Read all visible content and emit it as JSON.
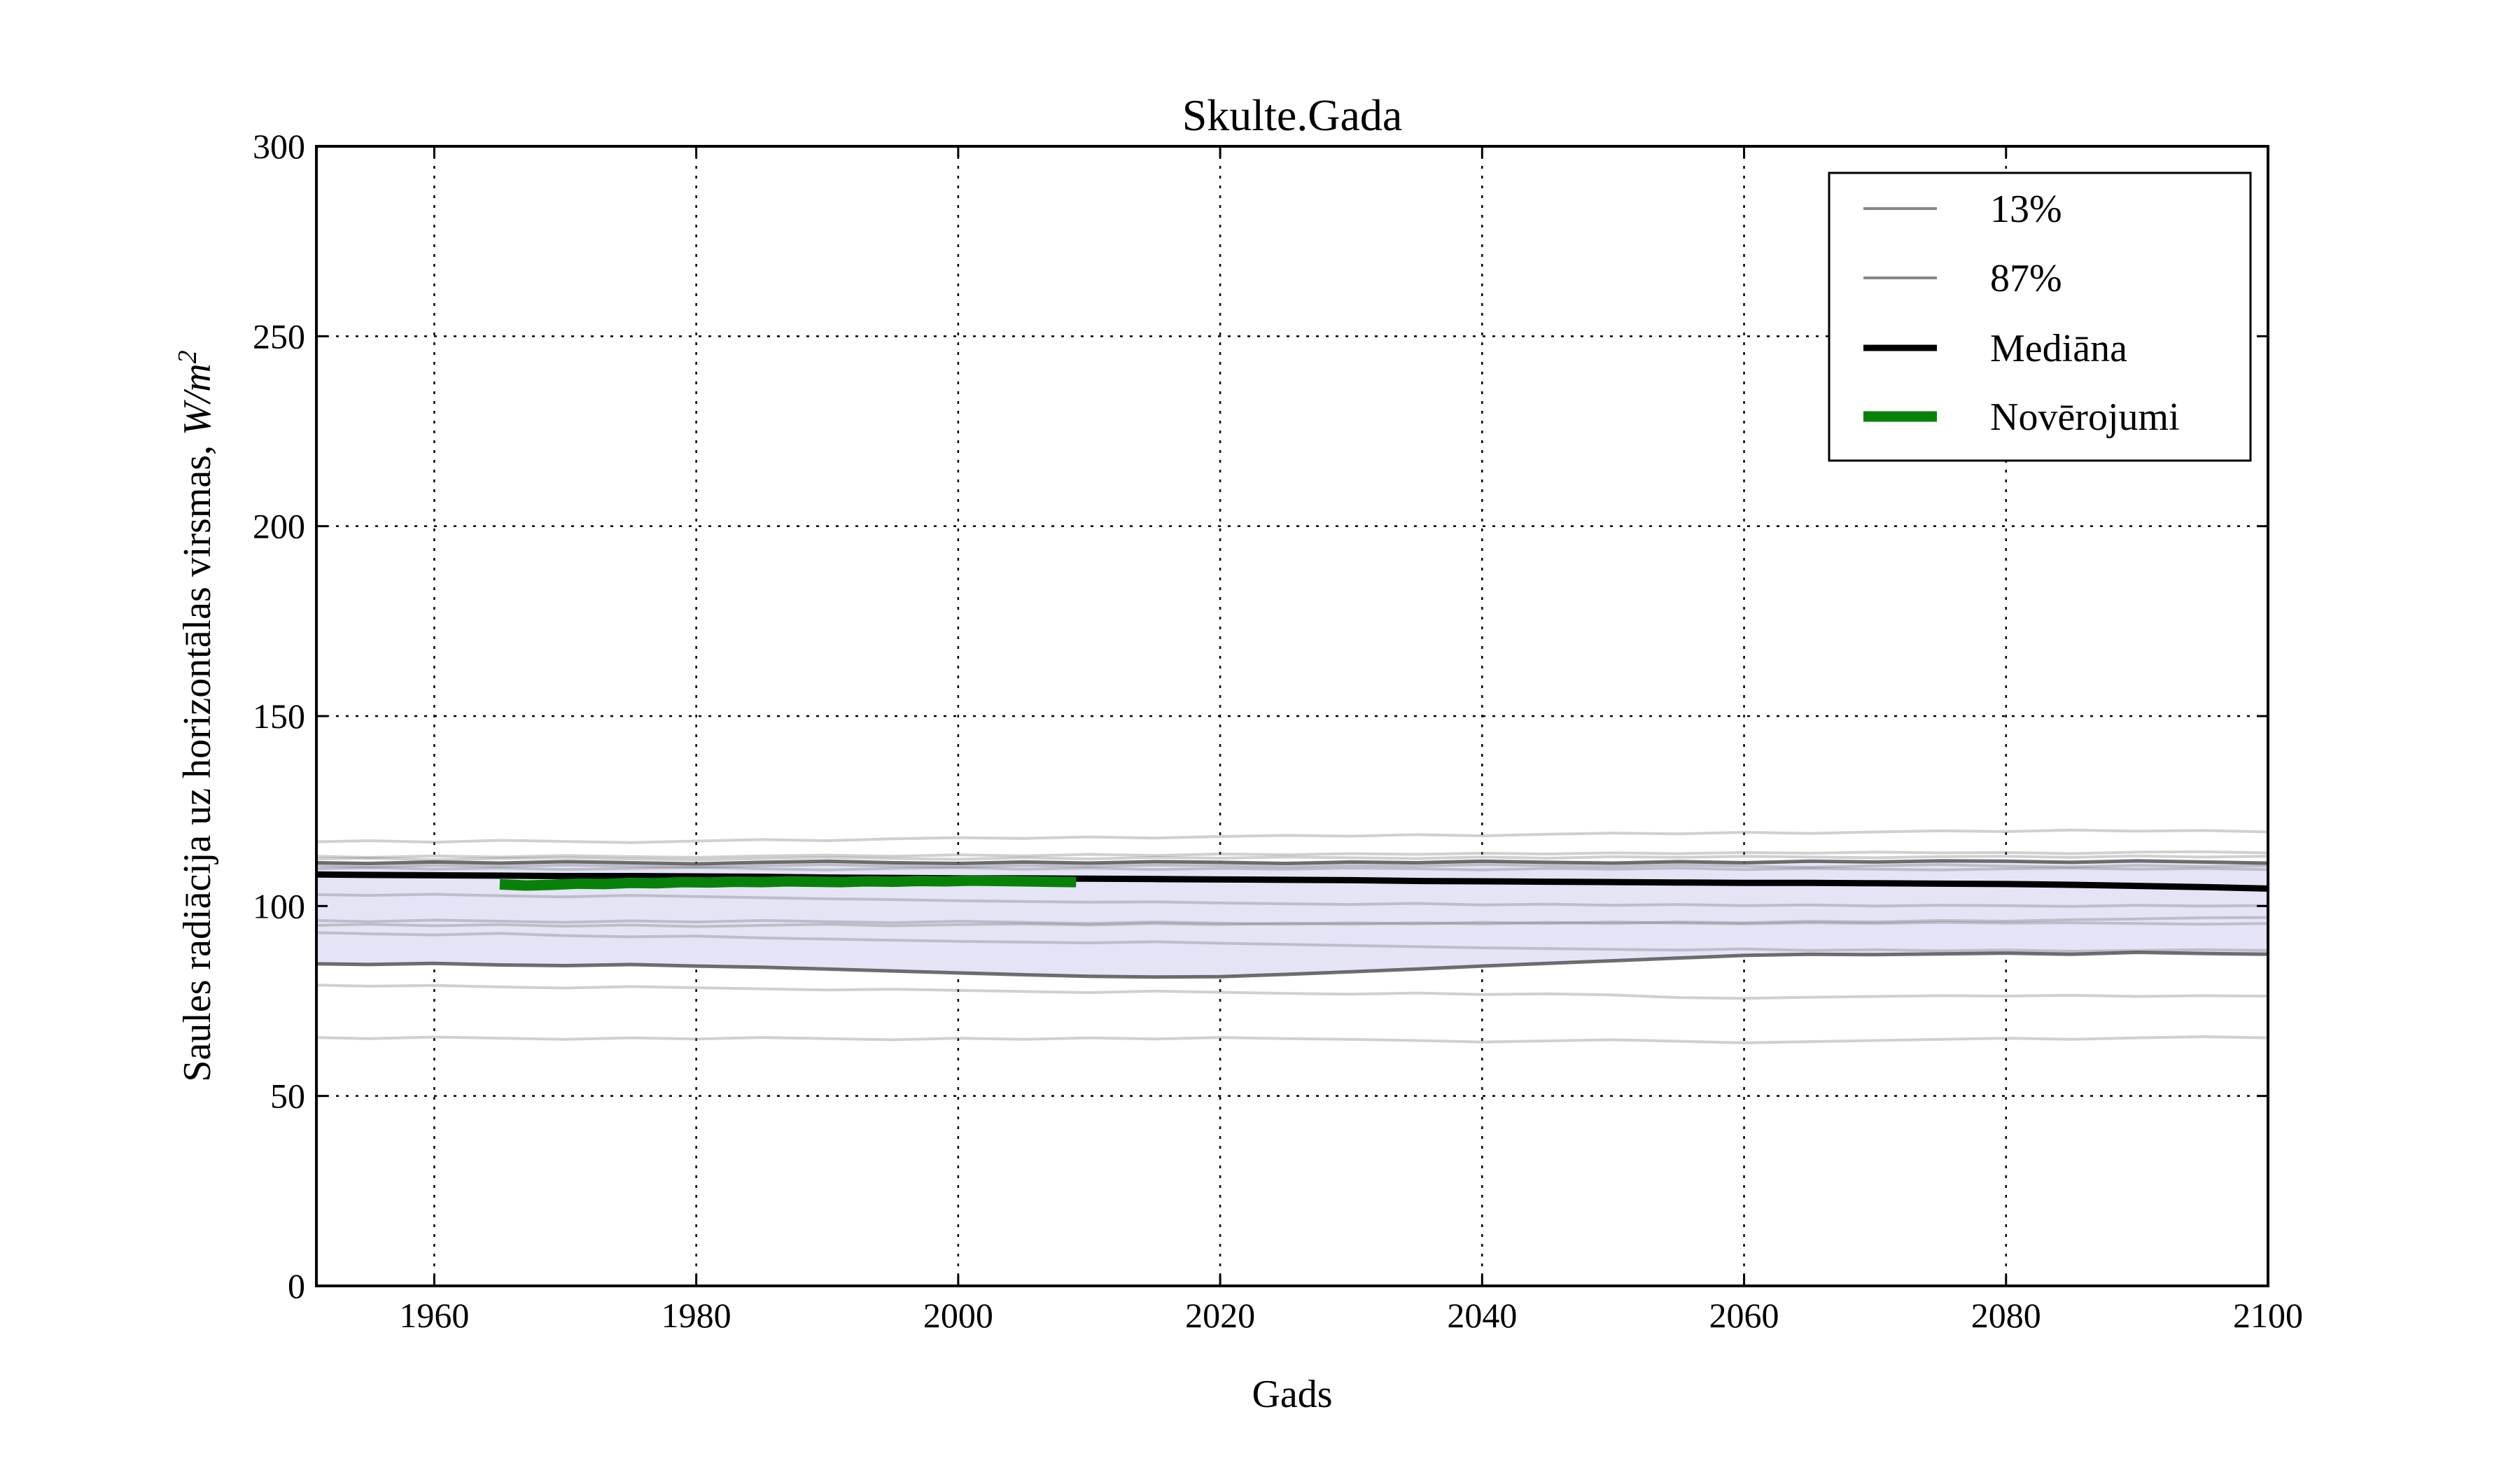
{
  "chart_data": {
    "type": "line",
    "title": "Skulte.Gada",
    "xlabel": "Gads",
    "ylabel": "Saules radiācija uz horizontālas virsmas, W/m²",
    "ylabel_plain": "Saules radiācija uz horizontālas virsmas,",
    "ylabel_math": "W/m",
    "ylabel_sup": "2",
    "xlim": [
      1951,
      2100
    ],
    "ylim": [
      0,
      300
    ],
    "xticks": [
      1960,
      1980,
      2000,
      2020,
      2040,
      2060,
      2080,
      2100
    ],
    "yticks": [
      0,
      50,
      100,
      150,
      200,
      250,
      300
    ],
    "grid": true,
    "grid_style": "dotted",
    "colors": {
      "median": "#000000",
      "observations": "#088108",
      "percentile": "rgba(70,70,70,0.78)",
      "ensemble": "rgba(110,110,110,0.32)",
      "band_fill": "#e4e4f6",
      "legend_gray": "#888888"
    },
    "legend": {
      "position": "upper right",
      "entries": [
        {
          "label": "13%",
          "color": "#888888",
          "width": 4
        },
        {
          "label": "87%",
          "color": "#888888",
          "width": 4
        },
        {
          "label": "Mediāna",
          "color": "#000000",
          "width": 9
        },
        {
          "label": "Novērojumi",
          "color": "#088108",
          "width": 15
        }
      ]
    },
    "x": [
      1951,
      1955,
      1960,
      1965,
      1970,
      1975,
      1980,
      1985,
      1990,
      1995,
      2000,
      2005,
      2010,
      2015,
      2020,
      2025,
      2030,
      2035,
      2040,
      2045,
      2050,
      2055,
      2060,
      2065,
      2070,
      2075,
      2080,
      2085,
      2090,
      2095,
      2100
    ],
    "band": {
      "between": [
        "13%",
        "87%"
      ]
    },
    "series": [
      {
        "name": "ensemble-1",
        "role": "ensemble",
        "values": [
          116.9,
          117.2,
          116.8,
          117.3,
          117.0,
          116.7,
          117.1,
          117.5,
          117.2,
          117.7,
          118.0,
          117.8,
          118.2,
          117.9,
          118.3,
          118.6,
          118.4,
          118.8,
          118.5,
          118.9,
          119.2,
          119.0,
          119.4,
          119.1,
          119.5,
          119.8,
          119.6,
          120.0,
          119.7,
          119.9,
          119.5
        ]
      },
      {
        "name": "ensemble-2",
        "role": "ensemble",
        "values": [
          113.1,
          112.8,
          113.2,
          112.9,
          113.3,
          113.0,
          112.8,
          113.2,
          113.4,
          113.1,
          113.5,
          113.2,
          113.6,
          113.3,
          113.7,
          113.5,
          113.8,
          113.6,
          113.9,
          113.7,
          114.0,
          113.8,
          114.1,
          113.9,
          114.2,
          114.0,
          114.1,
          113.8,
          114.2,
          114.3,
          114.0
        ]
      },
      {
        "name": "ensemble-3",
        "role": "ensemble",
        "values": [
          112.4,
          112.6,
          112.2,
          112.5,
          112.7,
          112.4,
          112.1,
          112.5,
          112.8,
          112.5,
          112.3,
          112.7,
          112.4,
          112.8,
          112.6,
          112.9,
          112.7,
          112.5,
          112.9,
          112.6,
          113.0,
          112.8,
          113.1,
          112.9,
          112.7,
          113.0,
          113.1,
          112.8,
          113.2,
          112.9,
          113.1
        ]
      },
      {
        "name": "ensemble-4",
        "role": "ensemble",
        "values": [
          110.6,
          110.3,
          110.7,
          110.4,
          110.8,
          110.5,
          110.2,
          110.6,
          110.9,
          110.5,
          110.3,
          110.7,
          110.4,
          110.8,
          110.6,
          110.3,
          110.7,
          110.5,
          110.9,
          110.6,
          110.4,
          110.8,
          110.5,
          110.2,
          110.6,
          110.9,
          110.5,
          110.3,
          110.7,
          110.4,
          110.6
        ]
      },
      {
        "name": "ensemble-5",
        "role": "ensemble",
        "values": [
          109.8,
          110.1,
          109.7,
          110.0,
          109.6,
          109.9,
          110.2,
          109.8,
          109.5,
          109.9,
          110.1,
          109.7,
          110.0,
          109.6,
          109.9,
          109.7,
          110.0,
          109.8,
          109.5,
          109.9,
          109.7,
          110.0,
          109.6,
          109.9,
          109.7,
          109.5,
          109.8,
          110.0,
          109.7,
          109.9,
          109.6
        ]
      },
      {
        "name": "ensemble-6",
        "role": "ensemble",
        "values": [
          103.0,
          102.8,
          103.1,
          102.7,
          102.4,
          102.8,
          102.5,
          102.2,
          101.9,
          101.7,
          101.4,
          101.2,
          101.0,
          101.1,
          100.8,
          100.6,
          100.4,
          100.7,
          100.3,
          100.5,
          100.2,
          100.4,
          100.1,
          100.3,
          100.0,
          100.2,
          100.1,
          99.9,
          100.2,
          100.0,
          100.1
        ]
      },
      {
        "name": "ensemble-7",
        "role": "ensemble",
        "values": [
          96.2,
          95.9,
          96.3,
          96.0,
          95.7,
          96.1,
          95.8,
          96.2,
          95.9,
          95.6,
          96.0,
          95.7,
          95.4,
          95.8,
          95.5,
          95.2,
          95.6,
          95.3,
          95.7,
          95.4,
          95.8,
          95.5,
          95.3,
          95.6,
          95.4,
          95.7,
          95.5,
          95.6,
          95.4,
          95.2,
          95.4
        ]
      },
      {
        "name": "ensemble-8",
        "role": "ensemble",
        "values": [
          94.9,
          95.2,
          94.8,
          95.1,
          94.7,
          95.0,
          94.6,
          94.9,
          95.2,
          94.8,
          95.1,
          95.3,
          95.0,
          95.4,
          95.1,
          95.5,
          95.2,
          95.6,
          95.3,
          95.7,
          95.4,
          95.8,
          95.6,
          96.0,
          95.8,
          96.2,
          96.0,
          96.4,
          96.6,
          96.9,
          97.0
        ]
      },
      {
        "name": "ensemble-9",
        "role": "ensemble",
        "values": [
          93.0,
          92.7,
          92.4,
          92.8,
          92.2,
          91.9,
          92.1,
          91.6,
          91.3,
          91.0,
          90.7,
          90.5,
          90.3,
          90.6,
          90.2,
          89.9,
          89.6,
          89.3,
          89.0,
          88.8,
          88.6,
          88.4,
          88.7,
          88.3,
          88.5,
          88.2,
          88.4,
          88.1,
          88.3,
          88.5,
          88.3
        ]
      },
      {
        "name": "ensemble-10",
        "role": "ensemble",
        "values": [
          79.2,
          78.9,
          79.1,
          78.7,
          78.4,
          78.8,
          78.5,
          78.2,
          77.9,
          78.1,
          77.8,
          77.5,
          77.2,
          77.6,
          77.3,
          77.0,
          76.8,
          77.1,
          76.7,
          76.9,
          76.6,
          75.9,
          75.7,
          76.0,
          76.2,
          76.4,
          76.3,
          76.5,
          76.2,
          76.4,
          76.3
        ]
      },
      {
        "name": "ensemble-11",
        "role": "ensemble",
        "values": [
          65.4,
          65.1,
          65.5,
          65.2,
          64.9,
          65.3,
          65.0,
          65.4,
          65.1,
          64.8,
          65.2,
          64.9,
          65.3,
          65.0,
          65.4,
          65.1,
          64.9,
          64.6,
          64.2,
          64.5,
          64.8,
          64.4,
          64.0,
          64.3,
          64.6,
          64.9,
          65.2,
          64.9,
          65.3,
          65.6,
          65.3
        ]
      },
      {
        "name": "percentile-13",
        "role": "percentile",
        "label": "13%",
        "values": [
          84.8,
          84.6,
          84.9,
          84.5,
          84.3,
          84.6,
          84.2,
          83.9,
          83.4,
          82.9,
          82.4,
          81.9,
          81.5,
          81.3,
          81.4,
          82.0,
          82.7,
          83.4,
          84.2,
          84.9,
          85.6,
          86.3,
          87.0,
          87.3,
          87.2,
          87.4,
          87.6,
          87.3,
          87.8,
          87.5,
          87.3
        ]
      },
      {
        "name": "percentile-87",
        "role": "percentile",
        "label": "87%",
        "values": [
          111.4,
          111.2,
          111.6,
          111.3,
          111.7,
          111.4,
          111.1,
          111.5,
          111.8,
          111.4,
          111.2,
          111.6,
          111.3,
          111.7,
          111.5,
          111.2,
          111.6,
          111.4,
          111.8,
          111.5,
          111.3,
          111.7,
          111.4,
          111.8,
          111.6,
          111.9,
          111.8,
          111.5,
          111.9,
          111.6,
          111.3
        ]
      },
      {
        "name": "median",
        "role": "median",
        "label": "Mediāna",
        "values": [
          108.3,
          108.2,
          108.1,
          108.0,
          107.9,
          107.9,
          107.8,
          107.7,
          107.5,
          107.4,
          107.3,
          107.3,
          107.2,
          107.1,
          107.0,
          106.9,
          106.8,
          106.6,
          106.5,
          106.4,
          106.3,
          106.2,
          106.1,
          106.1,
          106.0,
          105.9,
          105.8,
          105.6,
          105.3,
          105.0,
          104.6
        ]
      }
    ],
    "observations": {
      "name": "observations",
      "label": "Novērojumi",
      "x": [
        1965,
        1967,
        1969,
        1971,
        1973,
        1975,
        1977,
        1979,
        1981,
        1983,
        1985,
        1987,
        1989,
        1991,
        1993,
        1995,
        1997,
        1999,
        2001,
        2003,
        2005,
        2007,
        2009
      ],
      "values": [
        105.7,
        105.4,
        105.6,
        105.9,
        105.8,
        106.1,
        106.0,
        106.3,
        106.2,
        106.4,
        106.3,
        106.5,
        106.4,
        106.3,
        106.5,
        106.4,
        106.6,
        106.5,
        106.7,
        106.6,
        106.5,
        106.4,
        106.3
      ]
    }
  }
}
